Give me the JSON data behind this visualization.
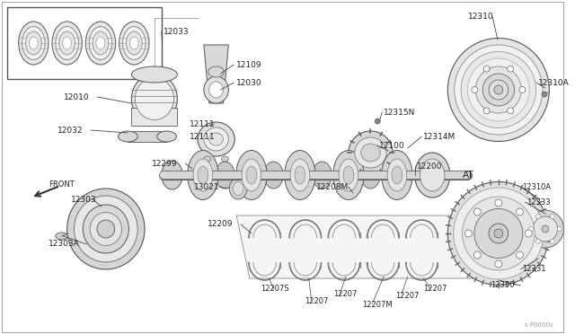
{
  "bg_color": "#ffffff",
  "line_color": "#444444",
  "text_color": "#222222",
  "fig_width": 6.4,
  "fig_height": 3.72,
  "dpi": 100,
  "watermark": "s P0000s",
  "at_label": "AT",
  "front_label": "FRONT"
}
